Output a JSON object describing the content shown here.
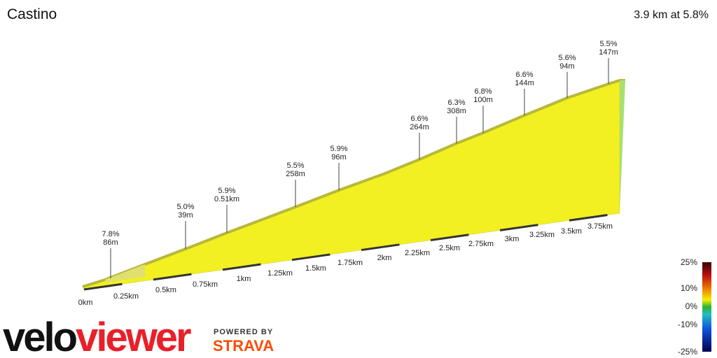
{
  "header": {
    "title": "Castino",
    "summary": "3.9 km at 5.8%"
  },
  "annotations": [
    [
      "7.8%",
      "86m"
    ],
    [
      "5.0%",
      "39m"
    ],
    [
      "5.9%",
      "0.51km"
    ],
    [
      "5.5%",
      "258m"
    ],
    [
      "5.9%",
      "96m"
    ],
    [
      "6.6%",
      "264m"
    ],
    [
      "6.3%",
      "308m"
    ],
    [
      "6.8%",
      "100m"
    ],
    [
      "6.6%",
      "144m"
    ],
    [
      "5.6%",
      "94m"
    ],
    [
      "5.5%",
      "147m"
    ]
  ],
  "distance_labels": [
    "0km",
    "0.25km",
    "0.5km",
    "0.75km",
    "1km",
    "1.25km",
    "1.5km",
    "1.75km",
    "2km",
    "2.25km",
    "2.5km",
    "2.75km",
    "3km",
    "3.25km",
    "3.5km",
    "3.75km"
  ],
  "gradient_legend": [
    "25%",
    "10%",
    "0%",
    "-10%",
    "-25%"
  ],
  "branding": {
    "logo_a": "velo",
    "logo_b": "viewer",
    "powered": "POWERED BY",
    "strava": "STRAVA"
  }
}
